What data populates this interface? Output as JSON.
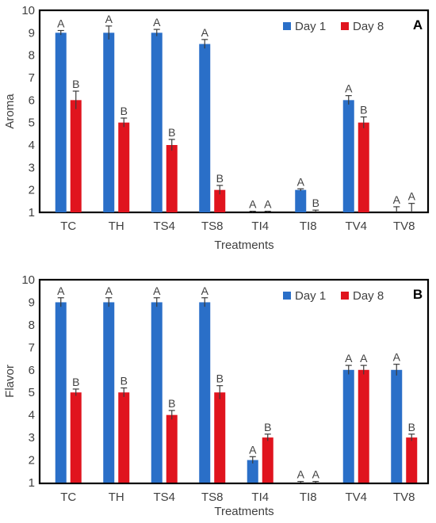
{
  "chart_data": [
    {
      "type": "bar",
      "panel_label": "A",
      "title": "",
      "xlabel": "Treatments",
      "ylabel": "Aroma",
      "ylim": [
        1,
        10
      ],
      "yticks": [
        1,
        2,
        3,
        4,
        5,
        6,
        7,
        8,
        9,
        10
      ],
      "grid": false,
      "legend_position": "top-right",
      "categories": [
        "TC",
        "TH",
        "TS4",
        "TS8",
        "TI4",
        "TI8",
        "TV4",
        "TV8"
      ],
      "series": [
        {
          "name": "Day 1",
          "color": "#2A6FC8",
          "values": [
            9,
            9,
            9,
            8.5,
            1,
            2,
            6,
            1
          ],
          "errors": [
            0.1,
            0.3,
            0.15,
            0.2,
            0.05,
            0.05,
            0.2,
            0.25
          ],
          "letters": [
            "A",
            "A",
            "A",
            "A",
            "A",
            "A",
            "A",
            "A"
          ]
        },
        {
          "name": "Day 8",
          "color": "#E0141E",
          "values": [
            6,
            5,
            4,
            2,
            1,
            1,
            5,
            1
          ],
          "errors": [
            0.4,
            0.2,
            0.25,
            0.2,
            0.05,
            0.1,
            0.25,
            0.4
          ],
          "letters": [
            "B",
            "B",
            "B",
            "B",
            "A",
            "B",
            "B",
            "A"
          ]
        }
      ]
    },
    {
      "type": "bar",
      "panel_label": "B",
      "title": "",
      "xlabel": "Treatments",
      "ylabel": "Flavor",
      "ylim": [
        1,
        10
      ],
      "yticks": [
        1,
        2,
        3,
        4,
        5,
        6,
        7,
        8,
        9,
        10
      ],
      "grid": false,
      "legend_position": "top-right",
      "categories": [
        "TC",
        "TH",
        "TS4",
        "TS8",
        "TI4",
        "TI8",
        "TV4",
        "TV8"
      ],
      "series": [
        {
          "name": "Day 1",
          "color": "#2A6FC8",
          "values": [
            9,
            9,
            9,
            9,
            2,
            1,
            6,
            6
          ],
          "errors": [
            0.2,
            0.2,
            0.2,
            0.2,
            0.15,
            0.05,
            0.2,
            0.25
          ],
          "letters": [
            "A",
            "A",
            "A",
            "A",
            "A",
            "A",
            "A",
            "A"
          ]
        },
        {
          "name": "Day 8",
          "color": "#E0141E",
          "values": [
            5,
            5,
            4,
            5,
            3,
            1,
            6,
            3
          ],
          "errors": [
            0.15,
            0.2,
            0.2,
            0.3,
            0.15,
            0.05,
            0.2,
            0.15
          ],
          "letters": [
            "B",
            "B",
            "B",
            "B",
            "B",
            "A",
            "A",
            "B"
          ]
        }
      ]
    }
  ]
}
